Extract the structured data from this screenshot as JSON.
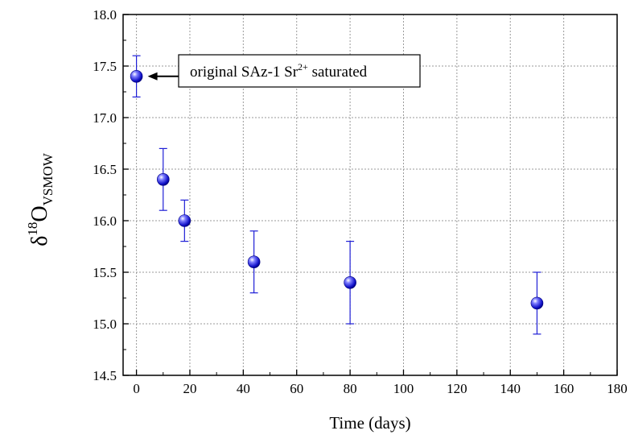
{
  "chart_data": {
    "type": "scatter",
    "title": "",
    "xlabel": "Time (days)",
    "ylabel": {
      "base": "δ",
      "sup": "18",
      "main": "O",
      "sub": "VSMOW"
    },
    "xlim": [
      -5,
      180
    ],
    "ylim": [
      14.5,
      18.0
    ],
    "x_ticks": [
      0,
      20,
      40,
      60,
      80,
      100,
      120,
      140,
      160,
      180
    ],
    "y_ticks": [
      14.5,
      15.0,
      15.5,
      16.0,
      16.5,
      17.0,
      17.5,
      18.0
    ],
    "y_tick_labels": [
      "14.5",
      "15.0",
      "15.5",
      "16.0",
      "16.5",
      "17.0",
      "17.5",
      "18.0"
    ],
    "grid": true,
    "marker_color": "#1f1fd6",
    "points": [
      {
        "x": 0,
        "y": 17.4,
        "err": 0.2
      },
      {
        "x": 10,
        "y": 16.4,
        "err": 0.3
      },
      {
        "x": 18,
        "y": 16.0,
        "err": 0.2
      },
      {
        "x": 44,
        "y": 15.6,
        "err": 0.3
      },
      {
        "x": 80,
        "y": 15.4,
        "err": 0.4
      },
      {
        "x": 150,
        "y": 15.2,
        "err": 0.3
      }
    ],
    "annotation": {
      "text_before": "original SAz-1 Sr",
      "sup": "2+",
      "text_after": " saturated",
      "points_to_index": 0
    }
  }
}
